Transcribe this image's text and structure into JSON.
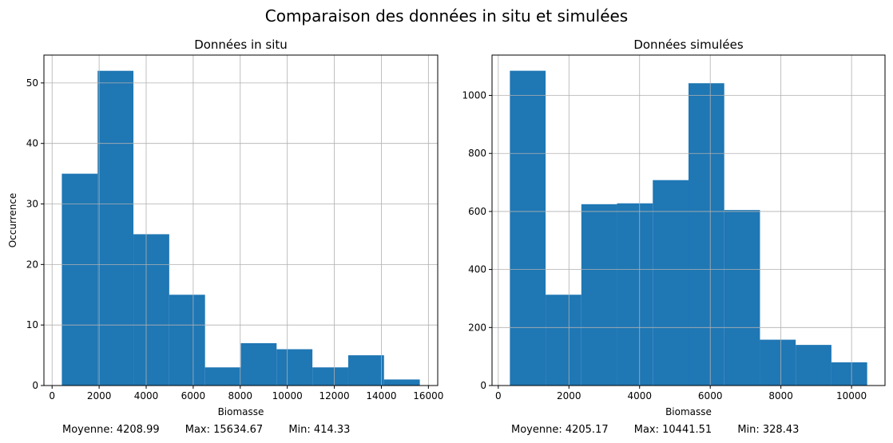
{
  "suptitle": "Comparaison des données in situ et simulées",
  "bar_color": "#1f77b4",
  "chart_data": [
    {
      "type": "bar",
      "title": "Données in situ",
      "xlabel": "Biomasse",
      "ylabel": "Occurrence",
      "bin_edges": [
        414.33,
        1936.36,
        3458.4,
        4980.43,
        6502.47,
        8024.5,
        9546.54,
        11068.57,
        12590.6,
        14112.64,
        15634.67
      ],
      "values": [
        35,
        52,
        25,
        15,
        3,
        7,
        6,
        3,
        5,
        1
      ],
      "xticks": [
        0,
        2000,
        4000,
        6000,
        8000,
        10000,
        12000,
        14000,
        16000
      ],
      "yticks": [
        0,
        10,
        20,
        30,
        40,
        50
      ],
      "xlim": [
        -347,
        16396
      ],
      "ylim": [
        0,
        54.6
      ],
      "grid": true,
      "stats": {
        "mean": "Moyenne: 4208.99",
        "max": "Max: 15634.67",
        "min": "Min: 414.33"
      }
    },
    {
      "type": "bar",
      "title": "Données simulées",
      "xlabel": "Biomasse",
      "ylabel": "",
      "bin_edges": [
        328.43,
        1339.74,
        2351.05,
        3362.36,
        4373.67,
        5384.97,
        6396.28,
        7407.59,
        8418.9,
        9430.2,
        10441.51
      ],
      "values": [
        1085,
        313,
        625,
        628,
        708,
        1042,
        605,
        158,
        140,
        80
      ],
      "xticks": [
        0,
        2000,
        4000,
        6000,
        8000,
        10000
      ],
      "yticks": [
        0,
        200,
        400,
        600,
        800,
        1000
      ],
      "xlim": [
        -177,
        10947
      ],
      "ylim": [
        0,
        1139
      ],
      "grid": true,
      "stats": {
        "mean": "Moyenne: 4205.17",
        "max": "Max: 10441.51",
        "min": "Min: 328.43"
      }
    }
  ]
}
